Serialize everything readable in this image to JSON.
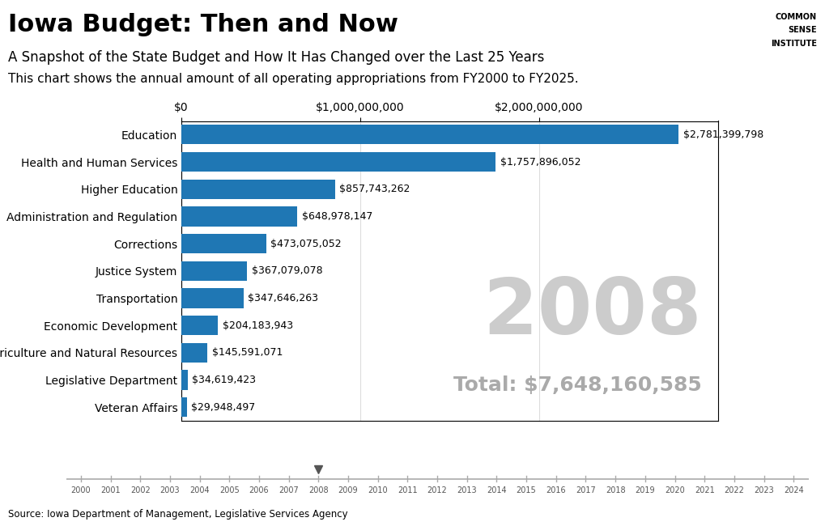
{
  "chart_data": {
    "type": "bar",
    "orientation": "horizontal",
    "title": "Iowa Budget: Then and Now",
    "subtitle": "A Snapshot of the State Budget and How It Has Changed over the Last 25 Years",
    "description": "This chart shows the annual amount of all operating appropriations from FY2000 to FY2025.",
    "source": "Source: Iowa Department of Management, Legislative Services Agency",
    "year": "2008",
    "total": "Total: $7,648,160,585",
    "logo": [
      "COMMON",
      "SENSE",
      "INSTITUTE"
    ],
    "timeline": [
      "2000",
      "2001",
      "2002",
      "2003",
      "2004",
      "2005",
      "2006",
      "2007",
      "2008",
      "2009",
      "2010",
      "2011",
      "2012",
      "2013",
      "2014",
      "2015",
      "2016",
      "2017",
      "2018",
      "2019",
      "2020",
      "2021",
      "2022",
      "2023",
      "2024"
    ],
    "categories": [
      "Education",
      "Health and Human Services",
      "Higher Education",
      "Administration and Regulation",
      "Corrections",
      "Justice System",
      "Transportation",
      "Economic Development",
      "Agriculture and Natural Resources",
      "Legislative Department",
      "Veteran Affairs"
    ],
    "values": [
      2781399798,
      1757896052,
      857743262,
      648978147,
      473075052,
      367079078,
      347646263,
      204183943,
      145591071,
      34619423,
      29948497
    ],
    "value_labels": [
      "$2,781,399,798",
      "$1,757,896,052",
      "$857,743,262",
      "$648,978,147",
      "$473,075,052",
      "$367,079,078",
      "$347,646,263",
      "$204,183,943",
      "$145,591,071",
      "$34,619,423",
      "$29,948,497"
    ],
    "data_labels": true,
    "xlim": [
      0,
      3000000000
    ],
    "xticks": [
      {
        "value": 0,
        "label": "$0"
      },
      {
        "value": 1000000000,
        "label": "$1,000,000,000"
      },
      {
        "value": 2000000000,
        "label": "$2,000,000,000"
      }
    ],
    "grid": true
  }
}
